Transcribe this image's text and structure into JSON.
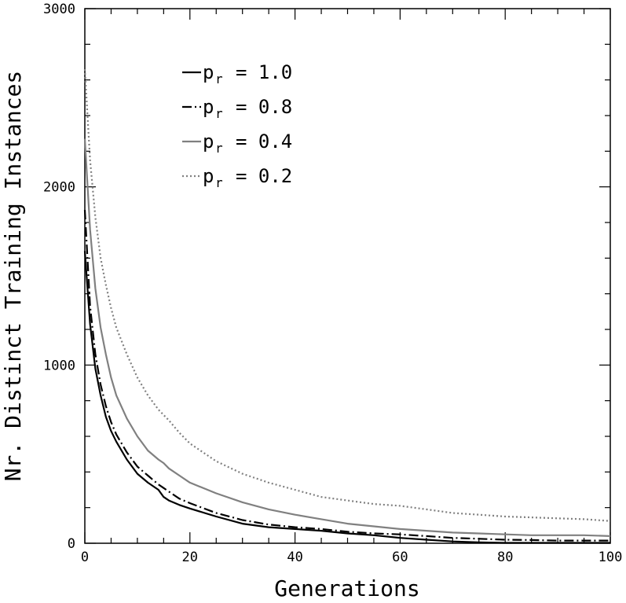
{
  "chart_data": {
    "type": "line",
    "title": "",
    "xlabel": "Generations",
    "ylabel": "Nr. Distinct Training Instances",
    "xlim": [
      0,
      100
    ],
    "ylim": [
      0,
      3000
    ],
    "xticks": [
      "0",
      "20",
      "40",
      "60",
      "80",
      "100"
    ],
    "yticks": [
      "0",
      "1000",
      "2000",
      "3000"
    ],
    "grid": false,
    "legend_position": "top-center",
    "x": [
      0,
      1,
      2,
      3,
      4,
      5,
      6,
      8,
      10,
      12,
      14,
      15,
      16,
      18,
      20,
      25,
      30,
      35,
      40,
      45,
      50,
      55,
      60,
      65,
      70,
      75,
      80,
      85,
      90,
      95,
      100
    ],
    "series": [
      {
        "name": "p_r = 1.0",
        "legend": {
          "label": "p",
          "sub": "r",
          "value": "= 1.0"
        },
        "color": "#000000",
        "dash": "",
        "values": [
          1640,
          1230,
          980,
          830,
          710,
          630,
          570,
          470,
          390,
          340,
          300,
          260,
          240,
          215,
          195,
          150,
          110,
          90,
          80,
          70,
          55,
          45,
          30,
          20,
          10,
          5,
          2,
          2,
          2,
          2,
          2
        ]
      },
      {
        "name": "p_r = 0.8",
        "legend": {
          "label": "p",
          "sub": "r",
          "value": "= 0.8"
        },
        "color": "#000000",
        "dash": "12,4,2,4",
        "values": [
          1870,
          1330,
          1060,
          890,
          770,
          680,
          610,
          510,
          430,
          380,
          330,
          310,
          290,
          250,
          225,
          170,
          130,
          105,
          90,
          80,
          65,
          55,
          50,
          40,
          30,
          25,
          20,
          18,
          15,
          15,
          15
        ]
      },
      {
        "name": "p_r = 0.4",
        "legend": {
          "label": "p",
          "sub": "r",
          "value": "= 0.4"
        },
        "color": "#808080",
        "dash": "",
        "values": [
          2270,
          1760,
          1430,
          1210,
          1060,
          930,
          830,
          700,
          600,
          520,
          470,
          450,
          420,
          380,
          340,
          280,
          230,
          190,
          160,
          135,
          110,
          95,
          80,
          70,
          60,
          55,
          50,
          45,
          45,
          45,
          40
        ]
      },
      {
        "name": "p_r = 0.2",
        "legend": {
          "label": "p",
          "sub": "r",
          "value": "= 0.2"
        },
        "color": "#808080",
        "dash": "2,3",
        "values": [
          2660,
          2150,
          1830,
          1600,
          1450,
          1320,
          1210,
          1060,
          930,
          830,
          750,
          720,
          690,
          620,
          560,
          460,
          390,
          340,
          300,
          260,
          240,
          220,
          210,
          190,
          170,
          160,
          150,
          145,
          140,
          135,
          125
        ]
      }
    ]
  }
}
